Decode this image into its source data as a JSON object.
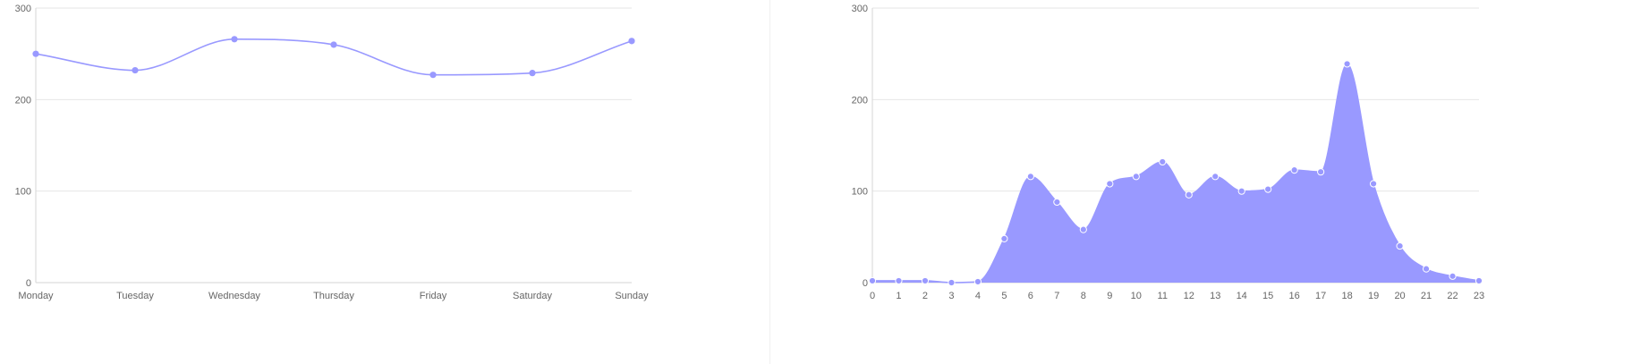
{
  "colors": {
    "series": "#9999ff",
    "grid": "#e6e6e6",
    "tick_text": "#666666"
  },
  "chart_data": [
    {
      "type": "line",
      "smooth": true,
      "categories": [
        "Monday",
        "Tuesday",
        "Wednesday",
        "Thursday",
        "Friday",
        "Saturday",
        "Sunday"
      ],
      "series": [
        {
          "values": [
            250,
            232,
            266,
            260,
            227,
            229,
            264
          ]
        }
      ],
      "ylim": [
        0,
        300
      ],
      "yticks": [
        0,
        100,
        200,
        300
      ],
      "grid": true,
      "legend": "none"
    },
    {
      "type": "area",
      "smooth": true,
      "categories": [
        "0",
        "1",
        "2",
        "3",
        "4",
        "5",
        "6",
        "7",
        "8",
        "9",
        "10",
        "11",
        "12",
        "13",
        "14",
        "15",
        "16",
        "17",
        "18",
        "19",
        "20",
        "21",
        "22",
        "23"
      ],
      "series": [
        {
          "values": [
            2,
            2,
            2,
            0,
            1,
            48,
            116,
            88,
            58,
            108,
            116,
            132,
            96,
            116,
            100,
            102,
            123,
            121,
            239,
            108,
            40,
            15,
            7,
            2
          ]
        }
      ],
      "ylim": [
        0,
        300
      ],
      "yticks": [
        0,
        100,
        200,
        300
      ],
      "grid": true,
      "legend": "none"
    }
  ]
}
